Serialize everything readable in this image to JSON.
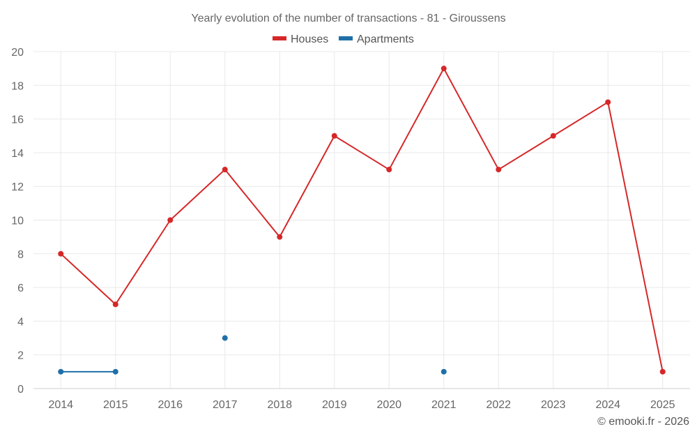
{
  "chart_data": {
    "type": "line",
    "title": "Yearly evolution of the number of transactions - 81 - Giroussens",
    "categories": [
      "2014",
      "2015",
      "2016",
      "2017",
      "2018",
      "2019",
      "2020",
      "2021",
      "2022",
      "2023",
      "2024",
      "2025"
    ],
    "ylim": [
      0,
      20
    ],
    "yticks": [
      0,
      2,
      4,
      6,
      8,
      10,
      12,
      14,
      16,
      18,
      20
    ],
    "grid": true,
    "legend_position": "top-center",
    "series": [
      {
        "name": "Houses",
        "color": "#d62728",
        "values": [
          8,
          5,
          10,
          13,
          9,
          15,
          13,
          19,
          13,
          15,
          17,
          1
        ]
      },
      {
        "name": "Apartments",
        "color": "#1f6fa8",
        "values": [
          1,
          1,
          null,
          3,
          null,
          null,
          null,
          1,
          null,
          null,
          null,
          null
        ]
      }
    ]
  },
  "credit": "© emooki.fr - 2026"
}
